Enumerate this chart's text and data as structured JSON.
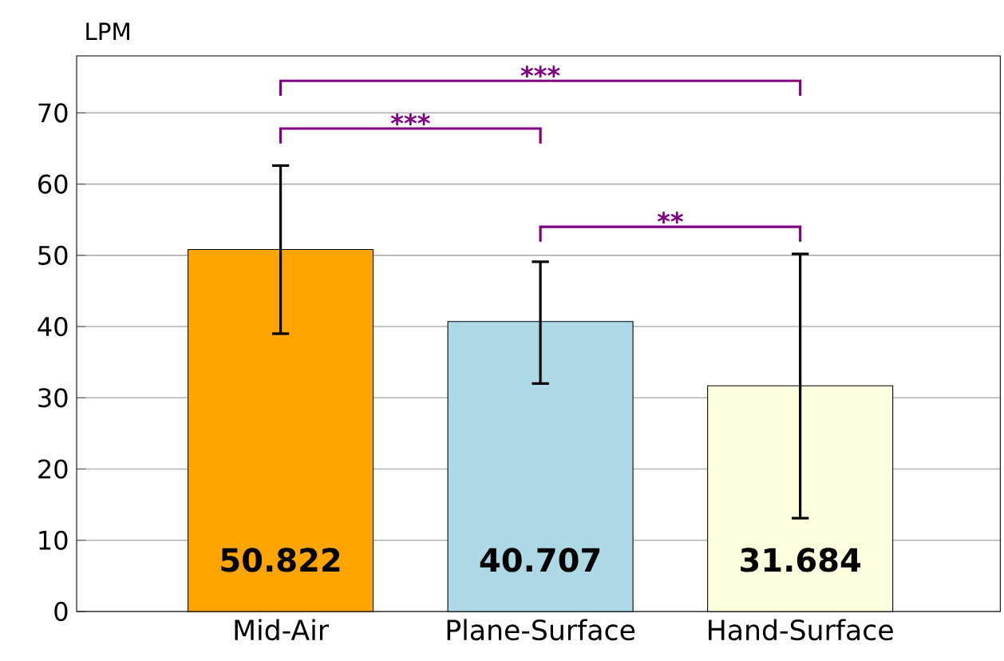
{
  "chart_data": {
    "type": "bar",
    "ylabel": "LPM",
    "categories": [
      "Mid-Air",
      "Plane-Surface",
      "Hand-Surface"
    ],
    "values": [
      50.822,
      40.707,
      31.684
    ],
    "colors": [
      "#ffa500",
      "#add8e6",
      "#ffffe0"
    ],
    "errors": [
      [
        39.0,
        62.6
      ],
      [
        32.0,
        49.1
      ],
      [
        13.1,
        50.2
      ]
    ],
    "ylim": [
      0,
      78
    ],
    "yticks": [
      0,
      10,
      20,
      30,
      40,
      50,
      60,
      70
    ],
    "grid": "y",
    "data_labels": true,
    "annotations": [
      "***",
      "***",
      "**"
    ]
  }
}
